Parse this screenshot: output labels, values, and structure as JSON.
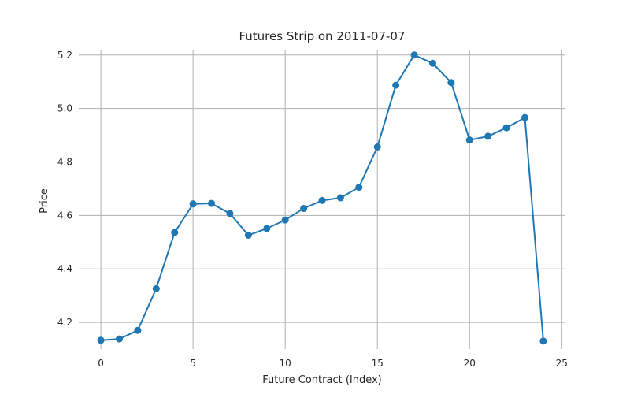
{
  "chart_data": {
    "type": "line",
    "title": "Futures Strip on 2011-07-07",
    "xlabel": "Future Contract (Index)",
    "ylabel": "Price",
    "xlim": [
      -1.2,
      25.2
    ],
    "ylim": [
      4.1,
      5.22
    ],
    "xticks": [
      0,
      5,
      10,
      15,
      20,
      25
    ],
    "yticks": [
      4.2,
      4.4,
      4.6,
      4.8,
      5.0,
      5.2
    ],
    "ytick_labels": [
      "4.2",
      "4.4",
      "4.6",
      "4.8",
      "5.0",
      "5.2"
    ],
    "grid": true,
    "color": "#1f77b4",
    "x": [
      0,
      1,
      2,
      3,
      4,
      5,
      6,
      7,
      8,
      9,
      10,
      11,
      12,
      13,
      14,
      15,
      16,
      17,
      18,
      19,
      20,
      21,
      22,
      23,
      24
    ],
    "y": [
      4.133,
      4.138,
      4.17,
      4.326,
      4.536,
      4.643,
      4.645,
      4.607,
      4.526,
      4.551,
      4.583,
      4.626,
      4.656,
      4.666,
      4.705,
      4.856,
      5.087,
      5.2,
      5.169,
      5.097,
      4.882,
      4.896,
      4.928,
      4.966,
      4.13
    ]
  }
}
